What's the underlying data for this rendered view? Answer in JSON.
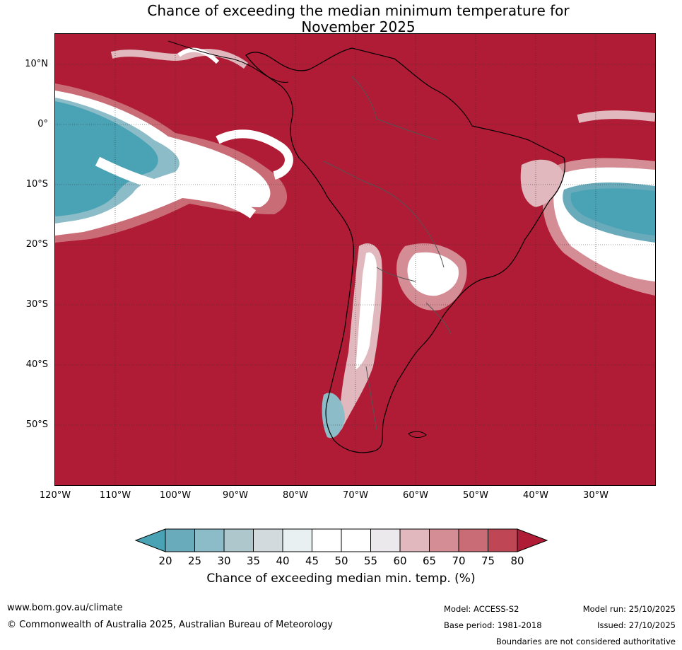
{
  "title_line1": "Chance of exceeding the median minimum temperature for",
  "title_line2": "November 2025",
  "map": {
    "lat_labels": [
      "10°N",
      "0°",
      "10°S",
      "20°S",
      "30°S",
      "40°S",
      "50°S"
    ],
    "lon_labels": [
      "120°W",
      "110°W",
      "100°W",
      "90°W",
      "80°W",
      "70°W",
      "60°W",
      "50°W",
      "40°W",
      "30°W"
    ]
  },
  "colorbar": {
    "ticks": [
      "20",
      "25",
      "30",
      "35",
      "40",
      "45",
      "50",
      "55",
      "60",
      "65",
      "70",
      "75",
      "80"
    ],
    "colors": [
      "#4aa3b5",
      "#6aabbb",
      "#8cbcc7",
      "#aec7cc",
      "#d3dadd",
      "#e9f0f2",
      "#ffffff",
      "#ffffff",
      "#ebe9eb",
      "#e0b8bd",
      "#d48c95",
      "#c96c76",
      "#bf4654",
      "#b01b35"
    ],
    "label": "Chance of exceeding median min. temp. (%)"
  },
  "footer": {
    "website": "www.bom.gov.au/climate",
    "copyright": "© Commonwealth of Australia 2025, Australian Bureau of Meteorology",
    "model": "Model: ACCESS-S2",
    "base_period": "Base period: 1981-2018",
    "model_run": "Model run: 25/10/2025",
    "issued": "Issued: 27/10/2025",
    "disclaimer": "Boundaries are not considered authoritative"
  }
}
